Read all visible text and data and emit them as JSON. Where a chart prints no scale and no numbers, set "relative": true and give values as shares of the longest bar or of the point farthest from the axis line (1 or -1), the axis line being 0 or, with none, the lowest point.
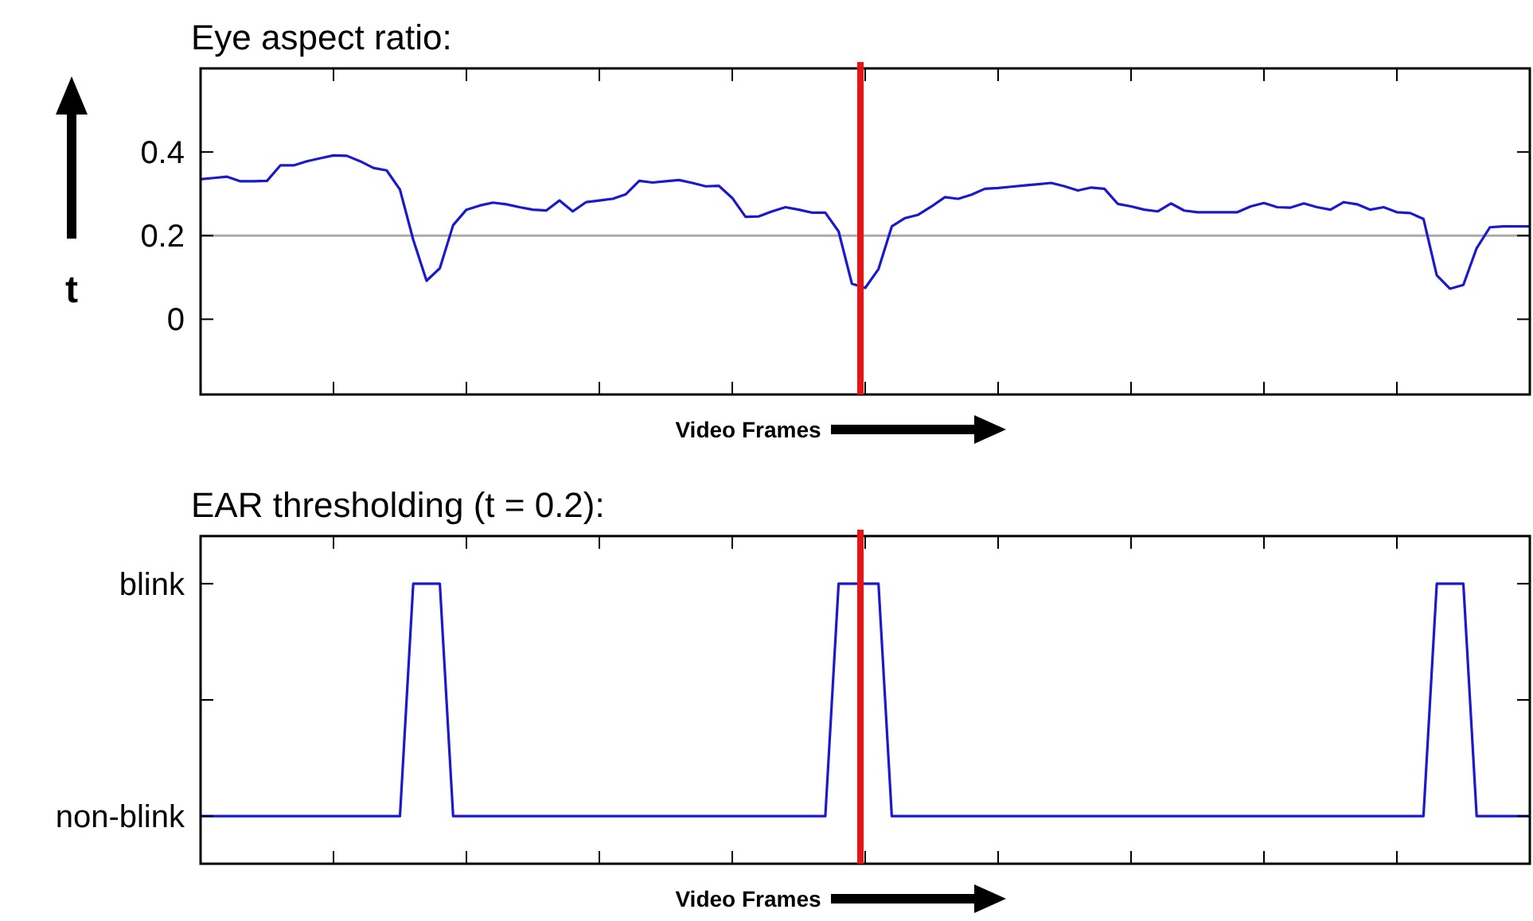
{
  "chart_data": [
    {
      "type": "line",
      "title": "Eye aspect ratio:",
      "xlabel": "Video Frames",
      "ylabel": "t",
      "categories": [
        null,
        null,
        null,
        null,
        null,
        null,
        null,
        null,
        null,
        null,
        null,
        null,
        null,
        null,
        null,
        null,
        null,
        null,
        null,
        null,
        null,
        null,
        null,
        null,
        null,
        null,
        null,
        null,
        null,
        null,
        null,
        null,
        null,
        null,
        null,
        null,
        null,
        null,
        null,
        null,
        null,
        null,
        null,
        null,
        null,
        null,
        null,
        null,
        null,
        null,
        null,
        null,
        null,
        null,
        null,
        null,
        null,
        null,
        null,
        null,
        null,
        null,
        null,
        null,
        null,
        null,
        null,
        null,
        null,
        null,
        null,
        null,
        null,
        null,
        null,
        null,
        null,
        null,
        null,
        null,
        null,
        null,
        null,
        null,
        null,
        null,
        null,
        null,
        null,
        null,
        null,
        null,
        null,
        null,
        null,
        null,
        null,
        null,
        null,
        null,
        null
      ],
      "series": [
        {
          "color": "#1a1acc",
          "values": [
            0.335,
            0.338,
            0.341,
            0.33,
            0.33,
            0.331,
            0.368,
            0.368,
            0.378,
            0.385,
            0.392,
            0.391,
            0.378,
            0.362,
            0.356,
            0.31,
            0.19,
            0.092,
            0.122,
            0.225,
            0.262,
            0.272,
            0.279,
            0.275,
            0.268,
            0.262,
            0.26,
            0.284,
            0.258,
            0.28,
            0.284,
            0.288,
            0.299,
            0.331,
            0.327,
            0.33,
            0.333,
            0.326,
            0.318,
            0.319,
            0.29,
            0.245,
            0.246,
            0.258,
            0.268,
            0.262,
            0.255,
            0.255,
            0.21,
            0.085,
            0.075,
            0.12,
            0.222,
            0.242,
            0.25,
            0.27,
            0.292,
            0.288,
            0.298,
            0.312,
            0.314,
            0.317,
            0.32,
            0.323,
            0.326,
            0.318,
            0.308,
            0.315,
            0.312,
            0.276,
            0.27,
            0.262,
            0.258,
            0.277,
            0.26,
            0.256,
            0.256,
            0.256,
            0.256,
            0.27,
            0.278,
            0.268,
            0.267,
            0.277,
            0.268,
            0.262,
            0.28,
            0.275,
            0.262,
            0.268,
            0.256,
            0.254,
            0.24,
            0.105,
            0.073,
            0.082,
            0.17,
            0.22,
            0.222,
            0.222,
            0.222
          ]
        }
      ],
      "ylim": [
        -0.18,
        0.6
      ],
      "yticks": [
        0,
        0.2,
        0.4
      ],
      "tick_labels": "y",
      "ref_lines": [
        {
          "axis": "y",
          "value": 0.2,
          "color": "#aaaaaa"
        }
      ]
    },
    {
      "type": "line",
      "title": "EAR thresholding (t = 0.2):",
      "xlabel": "Video Frames",
      "categories": [
        null,
        null,
        null,
        null,
        null,
        null,
        null,
        null,
        null,
        null,
        null,
        null,
        null,
        null,
        null,
        null,
        null,
        null,
        null,
        null,
        null,
        null,
        null,
        null,
        null,
        null,
        null,
        null,
        null,
        null,
        null,
        null,
        null,
        null,
        null,
        null,
        null,
        null,
        null,
        null,
        null,
        null,
        null,
        null,
        null,
        null,
        null,
        null,
        null,
        null,
        null,
        null,
        null,
        null,
        null,
        null,
        null,
        null,
        null,
        null,
        null,
        null,
        null,
        null,
        null,
        null,
        null,
        null,
        null,
        null,
        null,
        null,
        null,
        null,
        null,
        null,
        null,
        null,
        null,
        null,
        null,
        null,
        null,
        null,
        null,
        null,
        null,
        null,
        null,
        null,
        null,
        null,
        null,
        null,
        null,
        null,
        null,
        null,
        null,
        null,
        null
      ],
      "series": [
        {
          "color": "#1a1acc",
          "values": [
            0.17,
            0.17,
            0.17,
            0.17,
            0.17,
            0.17,
            0.17,
            0.17,
            0.17,
            0.17,
            0.17,
            0.17,
            0.17,
            0.17,
            0.17,
            0.17,
            1,
            1,
            1,
            0.17,
            0.17,
            0.17,
            0.17,
            0.17,
            0.17,
            0.17,
            0.17,
            0.17,
            0.17,
            0.17,
            0.17,
            0.17,
            0.17,
            0.17,
            0.17,
            0.17,
            0.17,
            0.17,
            0.17,
            0.17,
            0.17,
            0.17,
            0.17,
            0.17,
            0.17,
            0.17,
            0.17,
            0.17,
            1,
            1,
            1,
            1,
            0.17,
            0.17,
            0.17,
            0.17,
            0.17,
            0.17,
            0.17,
            0.17,
            0.17,
            0.17,
            0.17,
            0.17,
            0.17,
            0.17,
            0.17,
            0.17,
            0.17,
            0.17,
            0.17,
            0.17,
            0.17,
            0.17,
            0.17,
            0.17,
            0.17,
            0.17,
            0.17,
            0.17,
            0.17,
            0.17,
            0.17,
            0.17,
            0.17,
            0.17,
            0.17,
            0.17,
            0.17,
            0.17,
            0.17,
            0.17,
            0.17,
            1,
            1,
            1,
            0.17,
            0.17,
            0.17,
            0.17,
            0.17
          ]
        }
      ],
      "relative": true,
      "tick_labels": "y",
      "annotations": [
        "non-blink",
        "blink"
      ]
    }
  ]
}
